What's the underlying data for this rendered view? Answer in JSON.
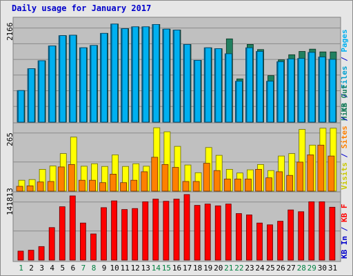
{
  "title": "Daily usage for January 2017",
  "colors": {
    "background": "#e6e6e6",
    "panel": "#c0c0c0",
    "grid": "#8a8a8a",
    "pages": "#00b0f0",
    "files": "#00c0ff",
    "hits": "#208060",
    "visits": "#ffff00",
    "sites": "#ff8000",
    "kb": "#ff0000",
    "weekday_label": "#000000",
    "weekend_label": "#008040"
  },
  "chart_data": [
    {
      "type": "bar",
      "title": "Daily usage for January 2017",
      "panel": "hits",
      "ymax_label": "2166",
      "ylim": [
        0,
        2166
      ],
      "categories": [
        "1",
        "2",
        "3",
        "4",
        "5",
        "6",
        "7",
        "8",
        "9",
        "10",
        "11",
        "12",
        "13",
        "14",
        "15",
        "16",
        "17",
        "18",
        "19",
        "20",
        "21",
        "22",
        "23",
        "24",
        "25",
        "26",
        "27",
        "28",
        "29",
        "30",
        "31"
      ],
      "legend_labels": [
        "Hits",
        "Files",
        "Pages"
      ],
      "series": [
        {
          "name": "Hits",
          "values": [
            680,
            1150,
            1320,
            1640,
            1860,
            1870,
            1600,
            1650,
            1910,
            2110,
            2010,
            2050,
            2050,
            2100,
            2000,
            1980,
            1670,
            1330,
            1600,
            1580,
            1790,
            930,
            1670,
            1560,
            1000,
            1340,
            1450,
            1520,
            1570,
            1510,
            1510
          ]
        },
        {
          "name": "Files",
          "values": [
            680,
            1150,
            1320,
            1640,
            1860,
            1870,
            1600,
            1650,
            1910,
            2110,
            2010,
            2050,
            2050,
            2100,
            2000,
            1980,
            1670,
            1330,
            1600,
            1580,
            1470,
            880,
            1600,
            1520,
            880,
            1300,
            1360,
            1370,
            1500,
            1400,
            1350
          ]
        },
        {
          "name": "Pages",
          "values": [
            680,
            1150,
            1320,
            1640,
            1860,
            1870,
            1600,
            1650,
            1910,
            2110,
            2010,
            2050,
            2050,
            2100,
            2000,
            1980,
            1670,
            1330,
            1600,
            1580,
            1470,
            880,
            1600,
            1520,
            880,
            1300,
            1360,
            1370,
            1500,
            1400,
            1350
          ]
        }
      ]
    },
    {
      "type": "bar",
      "panel": "visits",
      "ymax_label": "265",
      "ylim": [
        0,
        265
      ],
      "categories": [
        "1",
        "2",
        "3",
        "4",
        "5",
        "6",
        "7",
        "8",
        "9",
        "10",
        "11",
        "12",
        "13",
        "14",
        "15",
        "16",
        "17",
        "18",
        "19",
        "20",
        "21",
        "22",
        "23",
        "24",
        "25",
        "26",
        "27",
        "28",
        "29",
        "30",
        "31"
      ],
      "legend_labels": [
        "Visits",
        "Sites",
        "KB Out"
      ],
      "series": [
        {
          "name": "Visits",
          "values": [
            45,
            48,
            90,
            104,
            155,
            223,
            103,
            113,
            102,
            150,
            102,
            113,
            103,
            262,
            245,
            185,
            108,
            76,
            180,
            148,
            90,
            75,
            88,
            110,
            85,
            145,
            155,
            255,
            190,
            260,
            260
          ]
        },
        {
          "name": "Sites",
          "values": [
            20,
            22,
            38,
            40,
            100,
            110,
            45,
            45,
            35,
            70,
            35,
            45,
            80,
            140,
            110,
            98,
            40,
            40,
            115,
            85,
            50,
            50,
            50,
            90,
            55,
            80,
            65,
            120,
            150,
            190,
            145
          ]
        }
      ]
    },
    {
      "type": "bar",
      "panel": "kbytes",
      "ymax_label": "141813",
      "ylim": [
        0,
        141813
      ],
      "categories": [
        "1",
        "2",
        "3",
        "4",
        "5",
        "6",
        "7",
        "8",
        "9",
        "10",
        "11",
        "12",
        "13",
        "14",
        "15",
        "16",
        "17",
        "18",
        "19",
        "20",
        "21",
        "22",
        "23",
        "24",
        "25",
        "26",
        "27",
        "28",
        "29",
        "30",
        "31"
      ],
      "legend_labels": [
        "KB In",
        "KB F"
      ],
      "series": [
        {
          "name": "KB",
          "values": [
            20000,
            22000,
            30000,
            72000,
            118000,
            142000,
            82000,
            58000,
            116000,
            131000,
            112000,
            114000,
            129000,
            135000,
            130000,
            135000,
            145000,
            121000,
            124000,
            120000,
            124000,
            103000,
            100000,
            82000,
            78000,
            86000,
            111000,
            107000,
            129000,
            129000,
            117000
          ]
        }
      ]
    }
  ],
  "right_labels": {
    "panel1": [
      {
        "text": "Hits",
        "color": "#208060"
      },
      {
        "text": " / ",
        "color": "#0000cc"
      },
      {
        "text": "Files",
        "color": "#00a0d0"
      },
      {
        "text": " / ",
        "color": "#0000cc"
      },
      {
        "text": "Pages",
        "color": "#00b0f0"
      }
    ],
    "panel2": [
      {
        "text": "Visits",
        "color": "#c8c800"
      },
      {
        "text": " / ",
        "color": "#0000cc"
      },
      {
        "text": "Sites",
        "color": "#ff8000"
      },
      {
        "text": " / ",
        "color": "#0000cc"
      },
      {
        "text": "KB Out",
        "color": "#208060"
      }
    ],
    "panel3": [
      {
        "text": "KB In",
        "color": "#0000cc"
      },
      {
        "text": " / ",
        "color": "#0000cc"
      },
      {
        "text": "KB F",
        "color": "#ff0000"
      }
    ]
  },
  "weekend_days": [
    "1",
    "7",
    "8",
    "14",
    "15",
    "21",
    "22",
    "28",
    "29"
  ]
}
